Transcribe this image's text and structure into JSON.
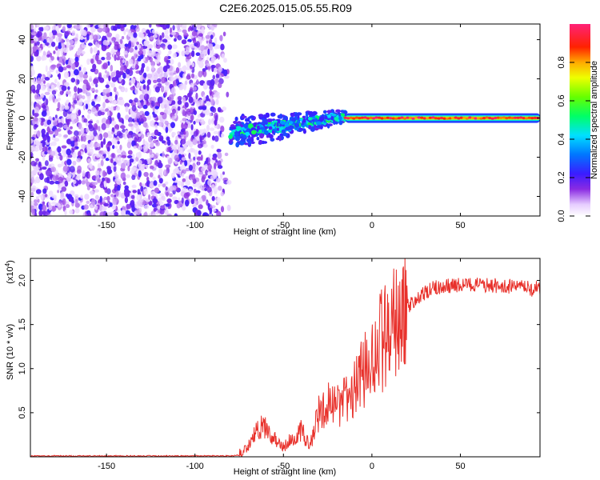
{
  "figure": {
    "title": "C2E6.2025.015.05.55.R09"
  },
  "chart_data": [
    {
      "type": "heatmap",
      "xlabel": "Height of straight line (km)",
      "ylabel": "Frequency (Hz)",
      "xlim": [
        -193,
        95
      ],
      "ylim": [
        -50,
        48
      ],
      "xticks": [
        -150,
        -100,
        -50,
        0,
        50
      ],
      "yticks": [
        -40,
        -20,
        0,
        20,
        40
      ],
      "colorbar": {
        "label": "Normalized spectral amplitude",
        "range": [
          0,
          1
        ],
        "ticks": [
          0.0,
          0.2,
          0.4,
          0.6,
          0.8
        ],
        "colormap": "rainbow (white-violet-blue-cyan-green-yellow-red-magenta)"
      },
      "regions": [
        {
          "name": "noise",
          "x": [
            -193,
            -80
          ],
          "freq": [
            -50,
            48
          ],
          "amplitude": [
            0.0,
            0.15
          ]
        },
        {
          "name": "transition",
          "x": [
            -80,
            -15
          ],
          "freq_center": [
            -8,
            1
          ],
          "amplitude": [
            0.2,
            0.55
          ]
        },
        {
          "name": "carrier",
          "x": [
            -15,
            95
          ],
          "freq_center": 0,
          "amplitude": [
            0.8,
            1.0
          ]
        }
      ],
      "grid": false
    },
    {
      "type": "line",
      "xlabel": "Height of straight line (km)",
      "ylabel": "SNR (10 * v/v)",
      "y_multiplier": "(x10",
      "y_multiplier_exp": "4",
      "xlim": [
        -193,
        95
      ],
      "ylim": [
        0,
        2.25
      ],
      "xticks": [
        -150,
        -100,
        -50,
        0,
        50
      ],
      "yticks": [
        0.5,
        1.0,
        1.5,
        2.0
      ],
      "ytick_labels": [
        "0.5",
        "1.0",
        "1.5",
        "2.0"
      ],
      "series": [
        {
          "color": "#e8302a",
          "x": [
            -193,
            -150,
            -100,
            -80,
            -75,
            -70,
            -65,
            -60,
            -55,
            -50,
            -45,
            -40,
            -35,
            -30,
            -25,
            -20,
            -15,
            -10,
            -5,
            0,
            5,
            10,
            15,
            20,
            25,
            30,
            35,
            40,
            50,
            60,
            70,
            80,
            90,
            95
          ],
          "y": [
            0.01,
            0.01,
            0.01,
            0.01,
            0.02,
            0.12,
            0.3,
            0.35,
            0.2,
            0.1,
            0.22,
            0.3,
            0.12,
            0.5,
            0.6,
            0.55,
            0.65,
            0.75,
            0.95,
            1.12,
            1.3,
            1.4,
            1.58,
            1.7,
            1.78,
            1.85,
            1.92,
            1.93,
            1.95,
            1.95,
            1.94,
            1.93,
            1.9,
            1.92
          ]
        }
      ],
      "grid": false
    }
  ]
}
